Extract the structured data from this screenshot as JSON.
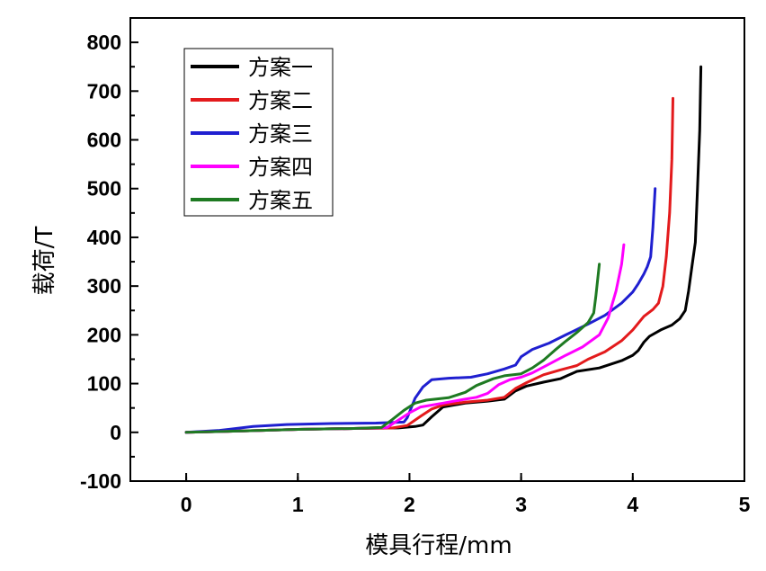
{
  "chart_data": {
    "type": "line",
    "xlabel": "模具行程/mm",
    "ylabel": "载荷/T",
    "xlim": [
      -0.5,
      5
    ],
    "ylim": [
      -100,
      850
    ],
    "x_ticks": [
      0,
      1,
      2,
      3,
      4,
      5
    ],
    "y_ticks": [
      -100,
      0,
      100,
      200,
      300,
      400,
      500,
      600,
      700,
      800
    ],
    "grid": false,
    "legend_position": "top-left",
    "series": [
      {
        "name": "方案一",
        "color": "#000000",
        "points": [
          [
            0,
            0
          ],
          [
            0.5,
            3
          ],
          [
            1,
            6
          ],
          [
            1.5,
            8
          ],
          [
            1.9,
            9
          ],
          [
            2.05,
            12
          ],
          [
            2.12,
            15
          ],
          [
            2.2,
            32
          ],
          [
            2.3,
            52
          ],
          [
            2.5,
            60
          ],
          [
            2.7,
            64
          ],
          [
            2.85,
            68
          ],
          [
            2.95,
            85
          ],
          [
            3.05,
            95
          ],
          [
            3.2,
            103
          ],
          [
            3.35,
            110
          ],
          [
            3.5,
            125
          ],
          [
            3.7,
            132
          ],
          [
            3.9,
            147
          ],
          [
            4.0,
            158
          ],
          [
            4.05,
            168
          ],
          [
            4.1,
            185
          ],
          [
            4.15,
            197
          ],
          [
            4.25,
            210
          ],
          [
            4.35,
            220
          ],
          [
            4.42,
            233
          ],
          [
            4.47,
            250
          ],
          [
            4.5,
            290
          ],
          [
            4.53,
            340
          ],
          [
            4.56,
            390
          ],
          [
            4.58,
            500
          ],
          [
            4.6,
            620
          ],
          [
            4.61,
            750
          ]
        ]
      },
      {
        "name": "方案二",
        "color": "#e31a1c",
        "points": [
          [
            0,
            0
          ],
          [
            0.5,
            3
          ],
          [
            1,
            6
          ],
          [
            1.5,
            8
          ],
          [
            1.85,
            9
          ],
          [
            1.98,
            14
          ],
          [
            2.1,
            33
          ],
          [
            2.2,
            48
          ],
          [
            2.3,
            56
          ],
          [
            2.5,
            62
          ],
          [
            2.7,
            66
          ],
          [
            2.85,
            72
          ],
          [
            2.95,
            90
          ],
          [
            3.05,
            102
          ],
          [
            3.2,
            118
          ],
          [
            3.35,
            128
          ],
          [
            3.5,
            137
          ],
          [
            3.6,
            150
          ],
          [
            3.75,
            165
          ],
          [
            3.9,
            188
          ],
          [
            4.0,
            210
          ],
          [
            4.1,
            238
          ],
          [
            4.18,
            252
          ],
          [
            4.23,
            265
          ],
          [
            4.27,
            300
          ],
          [
            4.3,
            360
          ],
          [
            4.33,
            450
          ],
          [
            4.35,
            560
          ],
          [
            4.36,
            685
          ]
        ]
      },
      {
        "name": "方案三",
        "color": "#1f1fd0",
        "points": [
          [
            0,
            0
          ],
          [
            0.3,
            4
          ],
          [
            0.6,
            12
          ],
          [
            0.9,
            16
          ],
          [
            1.3,
            18
          ],
          [
            1.7,
            19
          ],
          [
            1.95,
            21
          ],
          [
            1.98,
            30
          ],
          [
            2.05,
            70
          ],
          [
            2.12,
            93
          ],
          [
            2.2,
            108
          ],
          [
            2.35,
            111
          ],
          [
            2.55,
            113
          ],
          [
            2.7,
            120
          ],
          [
            2.85,
            130
          ],
          [
            2.95,
            138
          ],
          [
            3.0,
            155
          ],
          [
            3.1,
            170
          ],
          [
            3.25,
            183
          ],
          [
            3.4,
            200
          ],
          [
            3.6,
            222
          ],
          [
            3.75,
            240
          ],
          [
            3.9,
            265
          ],
          [
            4.0,
            288
          ],
          [
            4.05,
            305
          ],
          [
            4.1,
            325
          ],
          [
            4.13,
            340
          ],
          [
            4.16,
            360
          ],
          [
            4.18,
            420
          ],
          [
            4.2,
            500
          ]
        ]
      },
      {
        "name": "方案四",
        "color": "#ff00ff",
        "points": [
          [
            0,
            0
          ],
          [
            0.5,
            3
          ],
          [
            1,
            6
          ],
          [
            1.5,
            8
          ],
          [
            1.8,
            10
          ],
          [
            1.9,
            25
          ],
          [
            2.0,
            40
          ],
          [
            2.1,
            52
          ],
          [
            2.3,
            60
          ],
          [
            2.5,
            68
          ],
          [
            2.6,
            72
          ],
          [
            2.7,
            80
          ],
          [
            2.8,
            98
          ],
          [
            2.9,
            108
          ],
          [
            3.0,
            113
          ],
          [
            3.1,
            122
          ],
          [
            3.25,
            140
          ],
          [
            3.4,
            158
          ],
          [
            3.55,
            175
          ],
          [
            3.7,
            200
          ],
          [
            3.78,
            235
          ],
          [
            3.85,
            290
          ],
          [
            3.9,
            345
          ],
          [
            3.92,
            385
          ]
        ]
      },
      {
        "name": "方案五",
        "color": "#1e7a22",
        "points": [
          [
            0,
            0
          ],
          [
            0.5,
            3
          ],
          [
            1,
            6
          ],
          [
            1.5,
            8
          ],
          [
            1.75,
            10
          ],
          [
            1.85,
            27
          ],
          [
            1.95,
            45
          ],
          [
            2.05,
            60
          ],
          [
            2.15,
            66
          ],
          [
            2.35,
            71
          ],
          [
            2.5,
            82
          ],
          [
            2.6,
            96
          ],
          [
            2.75,
            110
          ],
          [
            2.85,
            116
          ],
          [
            3.0,
            120
          ],
          [
            3.1,
            132
          ],
          [
            3.2,
            148
          ],
          [
            3.3,
            168
          ],
          [
            3.4,
            187
          ],
          [
            3.5,
            205
          ],
          [
            3.6,
            225
          ],
          [
            3.65,
            245
          ],
          [
            3.67,
            280
          ],
          [
            3.7,
            345
          ]
        ]
      }
    ]
  }
}
